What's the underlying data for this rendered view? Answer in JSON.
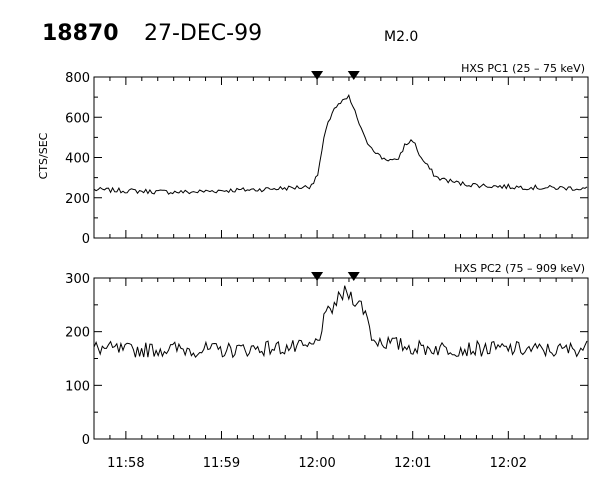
{
  "header": {
    "event_id": "18870",
    "date": "27-DEC-99",
    "flare_class": "M2.0"
  },
  "chart_data": [
    {
      "type": "line",
      "title": "HXS PC1 (25 – 75 keV)",
      "ylabel": "CTS/SEC",
      "xlabel": "",
      "xlim": [
        "11:57:40",
        "12:02:50"
      ],
      "ylim": [
        0,
        800
      ],
      "yticks": [
        0,
        200,
        400,
        600,
        800
      ],
      "xticks": [
        "11:58",
        "11:59",
        "12:00",
        "12:01",
        "12:02"
      ],
      "markers_x": [
        "12:00:00",
        "12:00:23"
      ],
      "series": [
        {
          "x": [
            "11:57:40",
            "11:58:00",
            "11:58:20",
            "11:58:40",
            "11:59:00",
            "11:59:20",
            "11:59:40",
            "11:59:55",
            "12:00:00",
            "12:00:05",
            "12:00:10",
            "12:00:15",
            "12:00:20",
            "12:00:25",
            "12:00:30",
            "12:00:40",
            "12:00:50",
            "12:00:55",
            "12:01:00",
            "12:01:05",
            "12:01:15",
            "12:01:30",
            "12:01:45",
            "12:02:00",
            "12:02:20",
            "12:02:40",
            "12:02:50"
          ],
          "values": [
            240,
            235,
            230,
            228,
            236,
            240,
            248,
            255,
            300,
            520,
            640,
            670,
            700,
            600,
            490,
            400,
            380,
            460,
            490,
            400,
            300,
            270,
            260,
            255,
            250,
            248,
            245
          ]
        }
      ]
    },
    {
      "type": "line",
      "title": "HXS PC2 (75 – 909 keV)",
      "ylabel": "",
      "xlabel": "",
      "xlim": [
        "11:57:40",
        "12:02:50"
      ],
      "ylim": [
        0,
        300
      ],
      "yticks": [
        0,
        100,
        200,
        300
      ],
      "xticks": [
        "11:58",
        "11:59",
        "12:00",
        "12:01",
        "12:02"
      ],
      "markers_x": [
        "12:00:00",
        "12:00:23"
      ],
      "series": [
        {
          "x": [
            "11:57:40",
            "11:58:00",
            "11:58:30",
            "11:59:00",
            "11:59:30",
            "11:59:55",
            "12:00:00",
            "12:00:05",
            "12:00:12",
            "12:00:18",
            "12:00:24",
            "12:00:30",
            "12:00:35",
            "12:01:00",
            "12:01:30",
            "12:02:00",
            "12:02:30",
            "12:02:50"
          ],
          "values": [
            170,
            165,
            168,
            165,
            170,
            170,
            180,
            225,
            255,
            275,
            260,
            240,
            185,
            170,
            168,
            168,
            165,
            170
          ]
        }
      ]
    }
  ]
}
